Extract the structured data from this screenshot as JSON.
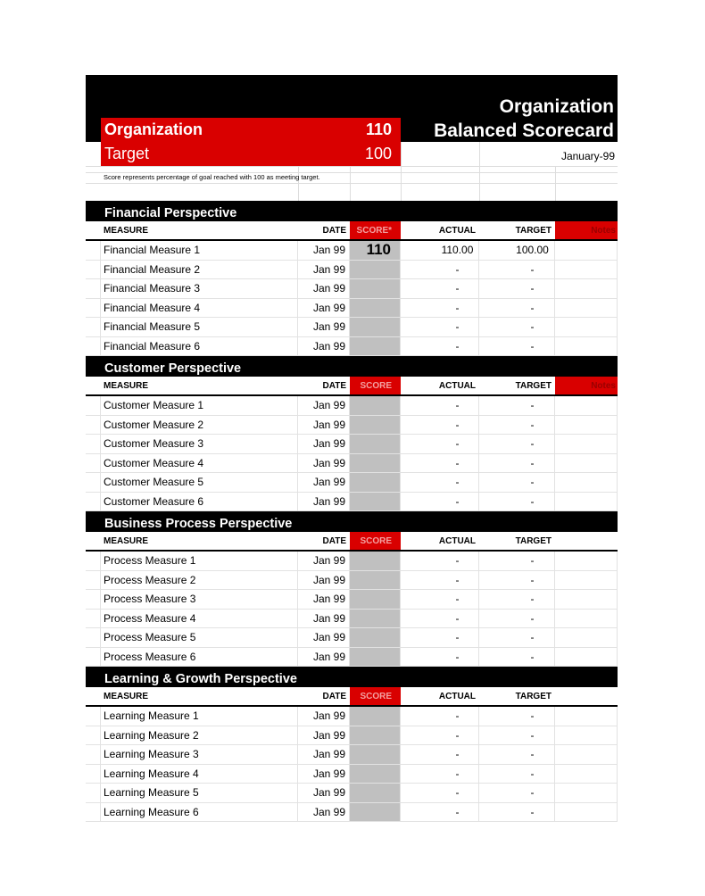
{
  "header": {
    "title_line1": "Organization",
    "title_line2": "Balanced Scorecard",
    "org_label": "Organization",
    "org_score": "110",
    "target_label": "Target",
    "target_value": "100",
    "date": "January-99",
    "note": "Score represents percentage of goal reached with 100 as meeting target."
  },
  "colors": {
    "accent": "#d90000",
    "band": "#000000",
    "score_fill": "#c0c0c0"
  },
  "sections": [
    {
      "title": "Financial Perspective",
      "columns": [
        "MEASURE",
        "DATE",
        "SCORE*",
        "ACTUAL",
        "TARGET",
        "Notes"
      ],
      "rows": [
        [
          "Financial Measure 1",
          "Jan 99",
          "110",
          "110.00",
          "100.00"
        ],
        [
          "Financial Measure 2",
          "Jan 99",
          "",
          "-",
          "-"
        ],
        [
          "Financial Measure 3",
          "Jan 99",
          "",
          "-",
          "-"
        ],
        [
          "Financial Measure 4",
          "Jan 99",
          "",
          "-",
          "-"
        ],
        [
          "Financial Measure 5",
          "Jan 99",
          "",
          "-",
          "-"
        ],
        [
          "Financial Measure 6",
          "Jan 99",
          "",
          "-",
          "-"
        ]
      ]
    },
    {
      "title": "Customer Perspective",
      "columns": [
        "MEASURE",
        "DATE",
        "SCORE",
        "ACTUAL",
        "TARGET",
        "Notes"
      ],
      "rows": [
        [
          "Customer Measure 1",
          "Jan 99",
          "",
          "-",
          "-"
        ],
        [
          "Customer Measure 2",
          "Jan 99",
          "",
          "-",
          "-"
        ],
        [
          "Customer Measure 3",
          "Jan 99",
          "",
          "-",
          "-"
        ],
        [
          "Customer Measure 4",
          "Jan 99",
          "",
          "-",
          "-"
        ],
        [
          "Customer Measure 5",
          "Jan 99",
          "",
          "-",
          "-"
        ],
        [
          "Customer Measure 6",
          "Jan 99",
          "",
          "-",
          "-"
        ]
      ]
    },
    {
      "title": "Business Process Perspective",
      "columns": [
        "MEASURE",
        "DATE",
        "SCORE",
        "ACTUAL",
        "TARGET",
        ""
      ],
      "rows": [
        [
          "Process Measure 1",
          "Jan 99",
          "",
          "-",
          "-"
        ],
        [
          "Process Measure 2",
          "Jan 99",
          "",
          "-",
          "-"
        ],
        [
          "Process Measure 3",
          "Jan 99",
          "",
          "-",
          "-"
        ],
        [
          "Process Measure 4",
          "Jan 99",
          "",
          "-",
          "-"
        ],
        [
          "Process Measure 5",
          "Jan 99",
          "",
          "-",
          "-"
        ],
        [
          "Process Measure 6",
          "Jan 99",
          "",
          "-",
          "-"
        ]
      ]
    },
    {
      "title": "Learning & Growth Perspective",
      "columns": [
        "MEASURE",
        "DATE",
        "SCORE",
        "ACTUAL",
        "TARGET",
        ""
      ],
      "rows": [
        [
          "Learning Measure 1",
          "Jan 99",
          "",
          "-",
          "-"
        ],
        [
          "Learning Measure 2",
          "Jan 99",
          "",
          "-",
          "-"
        ],
        [
          "Learning Measure 3",
          "Jan 99",
          "",
          "-",
          "-"
        ],
        [
          "Learning Measure 4",
          "Jan 99",
          "",
          "-",
          "-"
        ],
        [
          "Learning Measure 5",
          "Jan 99",
          "",
          "-",
          "-"
        ],
        [
          "Learning Measure 6",
          "Jan 99",
          "",
          "-",
          "-"
        ]
      ]
    }
  ]
}
